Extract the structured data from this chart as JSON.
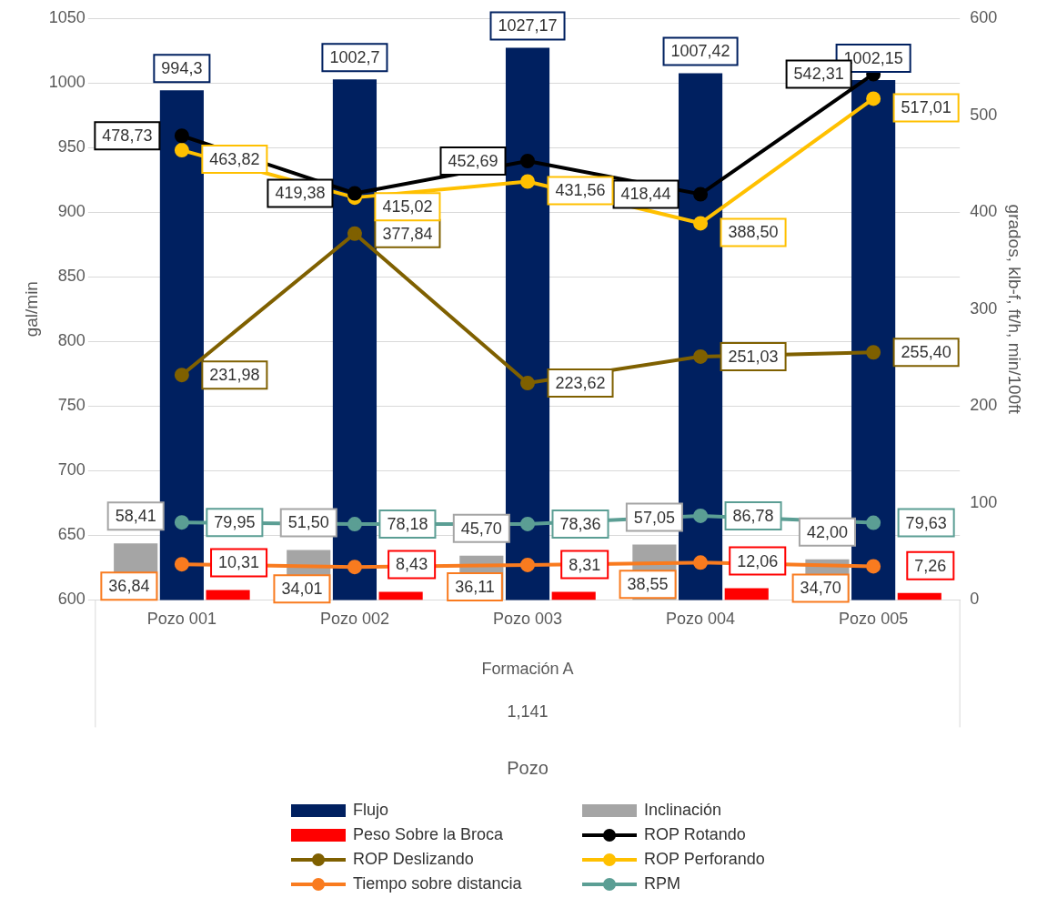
{
  "chart_data": {
    "type": "bar",
    "categories": [
      "Pozo 001",
      "Pozo 002",
      "Pozo 003",
      "Pozo 004",
      "Pozo 005"
    ],
    "ylabel": "gal/min",
    "y2label": "grados, klb-f, ft/h, min/100ft",
    "annotations": [
      "Formación A",
      "1,141",
      "Pozo"
    ],
    "ylim": [
      600,
      1050
    ],
    "yticks": [
      600,
      650,
      700,
      750,
      800,
      850,
      900,
      950,
      1000,
      1050
    ],
    "y2lim": [
      0,
      600
    ],
    "y2ticks": [
      0,
      100,
      200,
      300,
      400,
      500,
      600
    ],
    "grid": "y",
    "legend": "bottom",
    "marker": "circle",
    "series": [
      {
        "name": "Flujo",
        "color": "#002060",
        "values": [
          994.3,
          1002.7,
          1027.17,
          1007.42,
          1002.15
        ],
        "value_labels": [
          "994,3",
          "1002,7",
          "1027,17",
          "1007,42",
          "1002,15"
        ]
      },
      {
        "name": "Inclinación",
        "axis": "y2",
        "color": "#a5a5a5",
        "values": [
          58.41,
          51.5,
          45.7,
          57.05,
          42.0
        ],
        "value_labels": [
          "58,41",
          "51,50",
          "45,70",
          "57,05",
          "42,00"
        ]
      },
      {
        "name": "Peso Sobre la Broca",
        "axis": "y2",
        "color": "#ff0000",
        "values": [
          10.31,
          8.43,
          8.31,
          12.06,
          7.26
        ],
        "value_labels": [
          "10,31",
          "8,43",
          "8,31",
          "12,06",
          "7,26"
        ]
      },
      {
        "name": "ROP Rotando",
        "type": "line",
        "axis": "y2",
        "color": "#000000",
        "values": [
          478.73,
          419.38,
          452.69,
          418.44,
          542.31
        ],
        "value_labels": [
          "478,73",
          "419,38",
          "452,69",
          "418,44",
          "542,31"
        ]
      },
      {
        "name": "ROP Deslizando",
        "type": "line",
        "axis": "y2",
        "color": "#7f6000",
        "values": [
          231.98,
          377.84,
          223.62,
          251.03,
          255.4
        ],
        "value_labels": [
          "231,98",
          "377,84",
          "223,62",
          "251,03",
          "255,40"
        ]
      },
      {
        "name": "ROP Perforando",
        "type": "line",
        "axis": "y2",
        "color": "#ffc000",
        "values": [
          463.82,
          415.02,
          431.56,
          388.5,
          517.01
        ],
        "value_labels": [
          "463,82",
          "415,02",
          "431,56",
          "388,50",
          "517,01"
        ]
      },
      {
        "name": "Tiempo sobre distancia",
        "type": "line",
        "axis": "y2",
        "color": "#f97b1f",
        "values": [
          36.84,
          34.01,
          36.11,
          38.55,
          34.7
        ],
        "value_labels": [
          "36,84",
          "34,01",
          "36,11",
          "38,55",
          "34,70"
        ]
      },
      {
        "name": "RPM",
        "type": "line",
        "axis": "y2",
        "color": "#5b9e94",
        "values": [
          79.95,
          78.18,
          78.36,
          86.78,
          79.63
        ],
        "value_labels": [
          "79,95",
          "78,18",
          "78,36",
          "86,78",
          "79,63"
        ]
      }
    ]
  }
}
